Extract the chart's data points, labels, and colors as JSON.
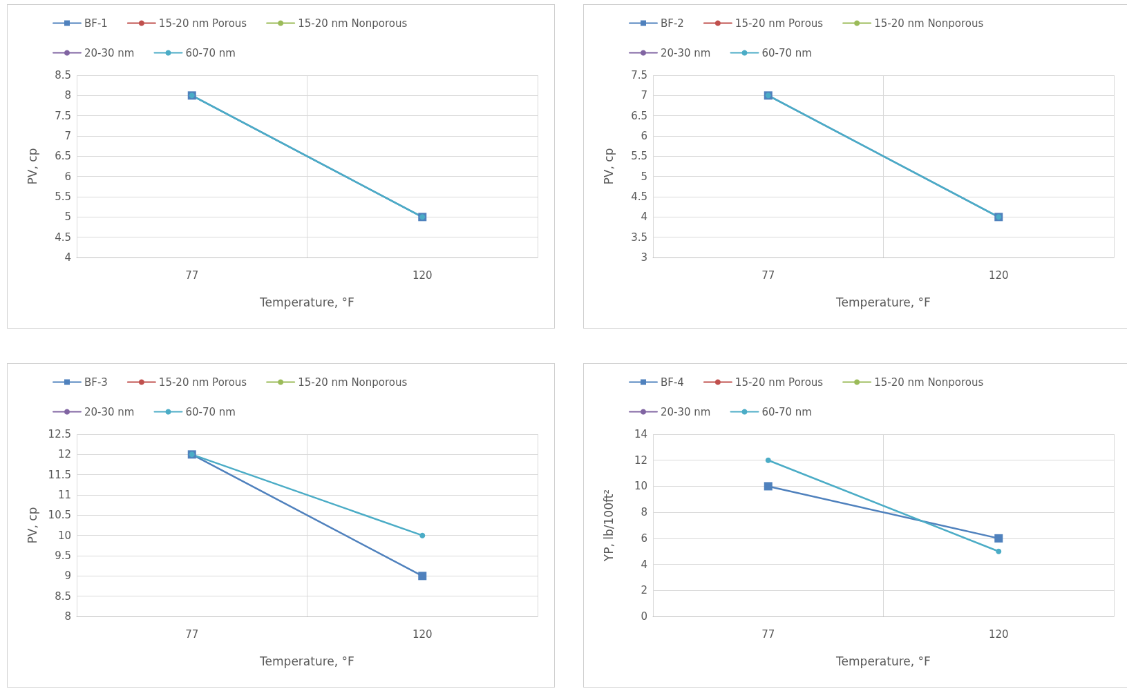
{
  "chart_data": [
    {
      "type": "line",
      "xlabel": "Temperature, °F",
      "ylabel": "PV, cp",
      "categories": [
        "77",
        "120"
      ],
      "ylim": [
        4,
        8.5
      ],
      "yticks": [
        4,
        4.5,
        5,
        5.5,
        6,
        6.5,
        7,
        7.5,
        8,
        8.5
      ],
      "grid": true,
      "legend": "top",
      "series": [
        {
          "name": "BF-1",
          "color": "#4f81bd",
          "marker": "square",
          "values": [
            8,
            5
          ]
        },
        {
          "name": "15-20 nm Porous",
          "color": "#c0504d",
          "marker": "circle",
          "values": [
            null,
            null
          ]
        },
        {
          "name": "15-20 nm Nonporous",
          "color": "#9bbb59",
          "marker": "circle",
          "values": [
            null,
            null
          ]
        },
        {
          "name": "20-30 nm",
          "color": "#8064a2",
          "marker": "circle",
          "values": [
            null,
            null
          ]
        },
        {
          "name": "60-70 nm",
          "color": "#4bacc6",
          "marker": "circle",
          "values": [
            8,
            5
          ]
        }
      ]
    },
    {
      "type": "line",
      "xlabel": "Temperature, °F",
      "ylabel": "PV, cp",
      "categories": [
        "77",
        "120"
      ],
      "ylim": [
        3,
        7.5
      ],
      "yticks": [
        3,
        3.5,
        4,
        4.5,
        5,
        5.5,
        6,
        6.5,
        7,
        7.5
      ],
      "grid": true,
      "legend": "top",
      "series": [
        {
          "name": "BF-2",
          "color": "#4f81bd",
          "marker": "square",
          "values": [
            7,
            4
          ]
        },
        {
          "name": "15-20 nm Porous",
          "color": "#c0504d",
          "marker": "circle",
          "values": [
            null,
            null
          ]
        },
        {
          "name": "15-20 nm Nonporous",
          "color": "#9bbb59",
          "marker": "circle",
          "values": [
            null,
            null
          ]
        },
        {
          "name": "20-30 nm",
          "color": "#8064a2",
          "marker": "circle",
          "values": [
            null,
            null
          ]
        },
        {
          "name": "60-70 nm",
          "color": "#4bacc6",
          "marker": "circle",
          "values": [
            7,
            4
          ]
        }
      ]
    },
    {
      "type": "line",
      "xlabel": "Temperature, °F",
      "ylabel": "PV, cp",
      "categories": [
        "77",
        "120"
      ],
      "ylim": [
        8,
        12.5
      ],
      "yticks": [
        8,
        8.5,
        9,
        9.5,
        10,
        10.5,
        11,
        11.5,
        12,
        12.5
      ],
      "grid": true,
      "legend": "top",
      "series": [
        {
          "name": "BF-3",
          "color": "#4f81bd",
          "marker": "square",
          "values": [
            12,
            9
          ]
        },
        {
          "name": "15-20 nm Porous",
          "color": "#c0504d",
          "marker": "circle",
          "values": [
            null,
            null
          ]
        },
        {
          "name": "15-20 nm Nonporous",
          "color": "#9bbb59",
          "marker": "circle",
          "values": [
            null,
            null
          ]
        },
        {
          "name": "20-30 nm",
          "color": "#8064a2",
          "marker": "circle",
          "values": [
            null,
            null
          ]
        },
        {
          "name": "60-70 nm",
          "color": "#4bacc6",
          "marker": "circle",
          "values": [
            12,
            10
          ]
        }
      ]
    },
    {
      "type": "line",
      "xlabel": "Temperature, °F",
      "ylabel": "YP, lb/100ft²",
      "categories": [
        "77",
        "120"
      ],
      "ylim": [
        0,
        14
      ],
      "yticks": [
        0,
        2,
        4,
        6,
        8,
        10,
        12,
        14
      ],
      "grid": true,
      "legend": "top",
      "series": [
        {
          "name": "BF-4",
          "color": "#4f81bd",
          "marker": "square",
          "values": [
            10,
            6
          ]
        },
        {
          "name": "15-20 nm Porous",
          "color": "#c0504d",
          "marker": "circle",
          "values": [
            null,
            null
          ]
        },
        {
          "name": "15-20 nm Nonporous",
          "color": "#9bbb59",
          "marker": "circle",
          "values": [
            null,
            null
          ]
        },
        {
          "name": "20-30 nm",
          "color": "#8064a2",
          "marker": "circle",
          "values": [
            null,
            null
          ]
        },
        {
          "name": "60-70 nm",
          "color": "#4bacc6",
          "marker": "circle",
          "values": [
            12,
            5
          ]
        }
      ]
    }
  ]
}
